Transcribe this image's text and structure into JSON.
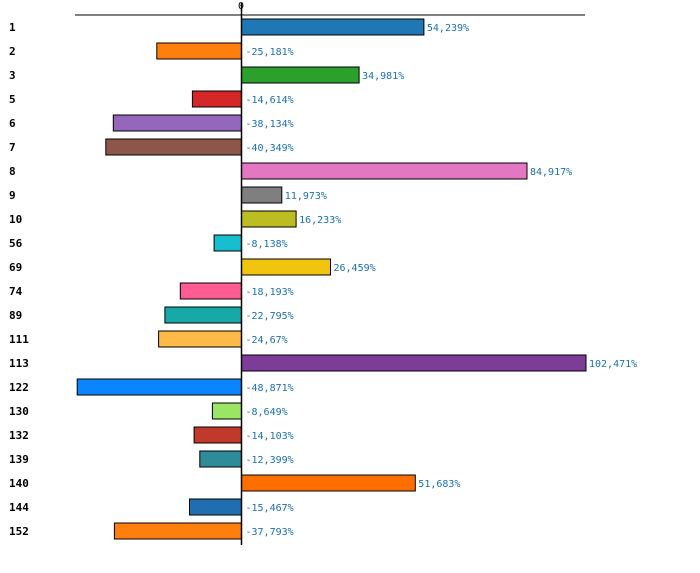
{
  "chart_data": {
    "type": "bar",
    "orientation": "horizontal",
    "title": "",
    "xlabel": "",
    "ylabel": "",
    "zero_tick_label": "0",
    "xlim": [
      -63,
      125
    ],
    "categories": [
      "1",
      "2",
      "3",
      "5",
      "6",
      "7",
      "8",
      "9",
      "10",
      "56",
      "69",
      "74",
      "89",
      "111",
      "113",
      "122",
      "130",
      "132",
      "139",
      "140",
      "144",
      "152"
    ],
    "values": [
      54.239,
      -25.181,
      34.981,
      -14.614,
      -38.134,
      -40.349,
      84.917,
      11.973,
      16.233,
      -8.138,
      26.459,
      -18.193,
      -22.795,
      -24.67,
      102.471,
      -48.871,
      -8.649,
      -14.103,
      -12.399,
      51.683,
      -15.467,
      -37.793
    ],
    "value_labels": [
      "54,239%",
      "-25,181%",
      "34,981%",
      "-14,614%",
      "-38,134%",
      "-40,349%",
      "84,917%",
      "11,973%",
      "16,233%",
      "-8,138%",
      "26,459%",
      "-18,193%",
      "-22,795%",
      "-24,67%",
      "102,471%",
      "-48,871%",
      "-8,649%",
      "-14,103%",
      "-12,399%",
      "51,683%",
      "-15,467%",
      "-37,793%"
    ],
    "colors": [
      "#1f77b4",
      "#ff7f0e",
      "#2ca02c",
      "#d62728",
      "#9467bd",
      "#8c564b",
      "#e377c2",
      "#7f7f7f",
      "#bcbd22",
      "#17becf",
      "#f1c40f",
      "#ff5c93",
      "#17a8a8",
      "#fdba46",
      "#7d3c98",
      "#0a84ff",
      "#9be564",
      "#c0392b",
      "#2e8b9a",
      "#ff6f00",
      "#1f6fb0",
      "#ff7f0e"
    ]
  }
}
